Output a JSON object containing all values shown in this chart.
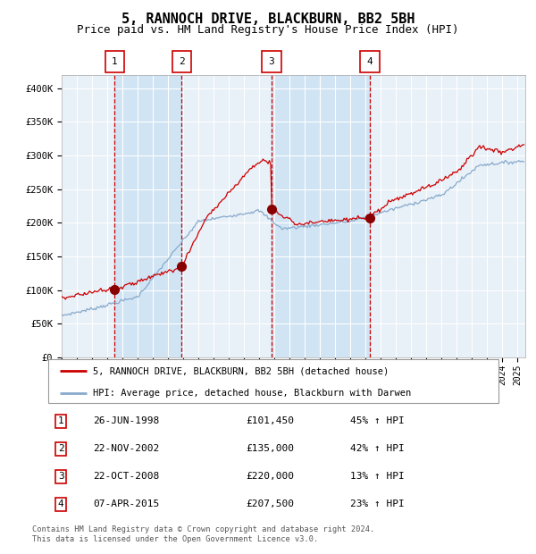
{
  "title": "5, RANNOCH DRIVE, BLACKBURN, BB2 5BH",
  "subtitle": "Price paid vs. HM Land Registry's House Price Index (HPI)",
  "title_fontsize": 11,
  "subtitle_fontsize": 9,
  "ylim": [
    0,
    420000
  ],
  "yticks": [
    0,
    50000,
    100000,
    150000,
    200000,
    250000,
    300000,
    350000,
    400000
  ],
  "ytick_labels": [
    "£0",
    "£50K",
    "£100K",
    "£150K",
    "£200K",
    "£250K",
    "£300K",
    "£350K",
    "£400K"
  ],
  "background_color": "#ffffff",
  "plot_bg_color": "#e8f0f8",
  "grid_color": "#ffffff",
  "red_line_color": "#cc0000",
  "blue_line_color": "#88aacc",
  "sale_marker_color": "#880000",
  "sale_marker_size": 7,
  "dashed_line_color": "#cc0000",
  "shade_color": "#d0e4f4",
  "transactions": [
    {
      "num": 1,
      "date_str": "26-JUN-1998",
      "year": 1998.49,
      "price": 101450,
      "pct": "45%",
      "dir": "↑"
    },
    {
      "num": 2,
      "date_str": "22-NOV-2002",
      "year": 2002.9,
      "price": 135000,
      "pct": "42%",
      "dir": "↑"
    },
    {
      "num": 3,
      "date_str": "22-OCT-2008",
      "year": 2008.81,
      "price": 220000,
      "pct": "13%",
      "dir": "↑"
    },
    {
      "num": 4,
      "date_str": "07-APR-2015",
      "year": 2015.27,
      "price": 207500,
      "pct": "23%",
      "dir": "↑"
    }
  ],
  "legend_line1": "5, RANNOCH DRIVE, BLACKBURN, BB2 5BH (detached house)",
  "legend_line2": "HPI: Average price, detached house, Blackburn with Darwen",
  "footer1": "Contains HM Land Registry data © Crown copyright and database right 2024.",
  "footer2": "This data is licensed under the Open Government Licence v3.0.",
  "xmin": 1995.0,
  "xmax": 2025.5
}
